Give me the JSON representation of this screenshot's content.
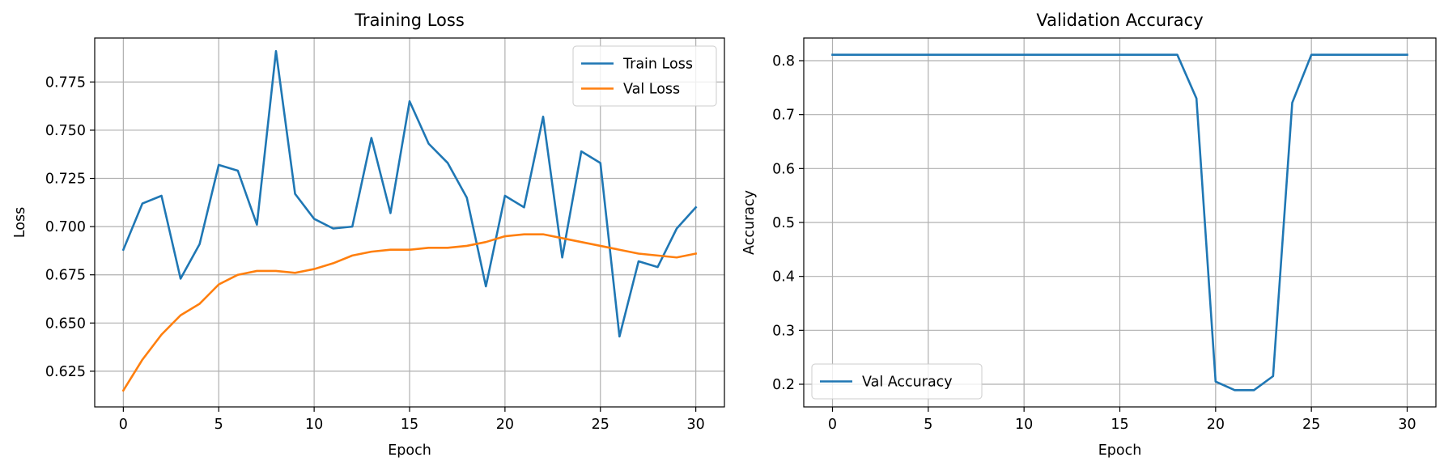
{
  "chart_data": [
    {
      "type": "line",
      "title": "Training Loss",
      "xlabel": "Epoch",
      "ylabel": "Loss",
      "xlim": [
        -1.5,
        31.5
      ],
      "ylim": [
        0.6065,
        0.7978
      ],
      "xticks": [
        0,
        5,
        10,
        15,
        20,
        25,
        30
      ],
      "xtick_labels": [
        "0",
        "5",
        "10",
        "15",
        "20",
        "25",
        "30"
      ],
      "yticks": [
        0.625,
        0.65,
        0.675,
        0.7,
        0.725,
        0.75,
        0.775
      ],
      "ytick_labels": [
        "0.625",
        "0.650",
        "0.675",
        "0.700",
        "0.725",
        "0.750",
        "0.775"
      ],
      "grid": true,
      "legend_position": "upper-right",
      "x": [
        0,
        1,
        2,
        3,
        4,
        5,
        6,
        7,
        8,
        9,
        10,
        11,
        12,
        13,
        14,
        15,
        16,
        17,
        18,
        19,
        20,
        21,
        22,
        23,
        24,
        25,
        26,
        27,
        28,
        29,
        30
      ],
      "series": [
        {
          "name": "Train Loss",
          "color": "#1f77b4",
          "values": [
            0.688,
            0.712,
            0.716,
            0.673,
            0.691,
            0.732,
            0.729,
            0.701,
            0.791,
            0.717,
            0.704,
            0.699,
            0.7,
            0.746,
            0.707,
            0.765,
            0.743,
            0.733,
            0.715,
            0.669,
            0.716,
            0.71,
            0.757,
            0.684,
            0.739,
            0.733,
            0.643,
            0.682,
            0.679,
            0.699,
            0.71
          ]
        },
        {
          "name": "Val Loss",
          "color": "#ff7f0e",
          "values": [
            0.615,
            0.631,
            0.644,
            0.654,
            0.66,
            0.67,
            0.675,
            0.677,
            0.677,
            0.676,
            0.678,
            0.681,
            0.685,
            0.687,
            0.688,
            0.688,
            0.689,
            0.689,
            0.69,
            0.692,
            0.695,
            0.696,
            0.696,
            0.694,
            0.692,
            0.69,
            0.688,
            0.686,
            0.685,
            0.684,
            0.686
          ]
        }
      ]
    },
    {
      "type": "line",
      "title": "Validation Accuracy",
      "xlabel": "Epoch",
      "ylabel": "Accuracy",
      "xlim": [
        -1.5,
        31.5
      ],
      "ylim": [
        0.158,
        0.842
      ],
      "xticks": [
        0,
        5,
        10,
        15,
        20,
        25,
        30
      ],
      "xtick_labels": [
        "0",
        "5",
        "10",
        "15",
        "20",
        "25",
        "30"
      ],
      "yticks": [
        0.2,
        0.3,
        0.4,
        0.5,
        0.6,
        0.7,
        0.8
      ],
      "ytick_labels": [
        "0.2",
        "0.3",
        "0.4",
        "0.5",
        "0.6",
        "0.7",
        "0.8"
      ],
      "grid": true,
      "legend_position": "lower-left",
      "x": [
        0,
        1,
        2,
        3,
        4,
        5,
        6,
        7,
        8,
        9,
        10,
        11,
        12,
        13,
        14,
        15,
        16,
        17,
        18,
        19,
        20,
        21,
        22,
        23,
        24,
        25,
        26,
        27,
        28,
        29,
        30
      ],
      "series": [
        {
          "name": "Val Accuracy",
          "color": "#1f77b4",
          "values": [
            0.811,
            0.811,
            0.811,
            0.811,
            0.811,
            0.811,
            0.811,
            0.811,
            0.811,
            0.811,
            0.811,
            0.811,
            0.811,
            0.811,
            0.811,
            0.811,
            0.811,
            0.811,
            0.811,
            0.73,
            0.205,
            0.189,
            0.189,
            0.215,
            0.722,
            0.811,
            0.811,
            0.811,
            0.811,
            0.811,
            0.811
          ]
        }
      ]
    }
  ]
}
